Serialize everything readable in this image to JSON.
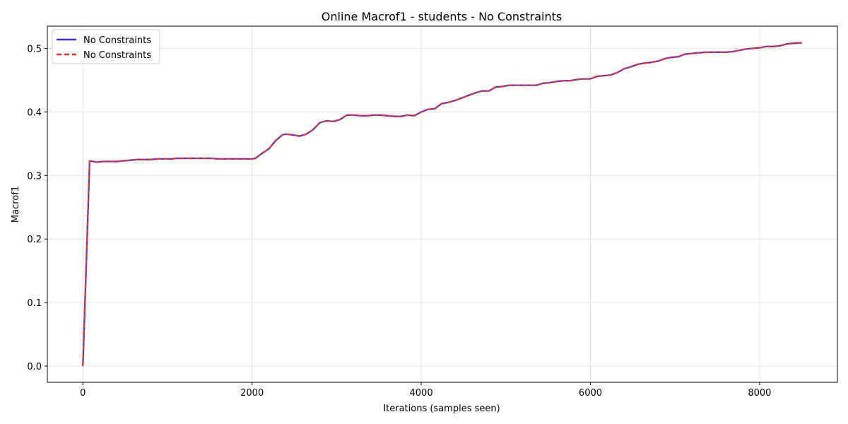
{
  "chart_data": {
    "type": "line",
    "title": "Online Macrof1 - students - No Constraints",
    "xlabel": "Iterations (samples seen)",
    "ylabel": "Macrof1",
    "xlim": [
      -420,
      8920
    ],
    "ylim": [
      -0.0255,
      0.535
    ],
    "xticks": [
      0,
      2000,
      4000,
      6000,
      8000
    ],
    "xtick_labels": [
      "0",
      "2000",
      "4000",
      "6000",
      "8000"
    ],
    "yticks": [
      0.0,
      0.1,
      0.2,
      0.3,
      0.4,
      0.5
    ],
    "ytick_labels": [
      "0.0",
      "0.1",
      "0.2",
      "0.3",
      "0.4",
      "0.5"
    ],
    "grid": true,
    "legend_position": "upper-left",
    "x": [
      0,
      80,
      160,
      240,
      320,
      400,
      480,
      560,
      640,
      720,
      800,
      880,
      960,
      1040,
      1120,
      1200,
      1280,
      1360,
      1440,
      1520,
      1600,
      1680,
      1760,
      1840,
      1920,
      2000,
      2040,
      2120,
      2200,
      2280,
      2360,
      2400,
      2480,
      2560,
      2640,
      2720,
      2800,
      2880,
      2960,
      3040,
      3120,
      3200,
      3280,
      3360,
      3440,
      3520,
      3600,
      3680,
      3760,
      3840,
      3920,
      4000,
      4080,
      4160,
      4240,
      4320,
      4400,
      4480,
      4560,
      4640,
      4720,
      4800,
      4880,
      4960,
      5040,
      5120,
      5200,
      5280,
      5360,
      5440,
      5520,
      5600,
      5680,
      5760,
      5840,
      5920,
      6000,
      6080,
      6160,
      6240,
      6320,
      6400,
      6480,
      6560,
      6640,
      6720,
      6800,
      6880,
      6960,
      7040,
      7120,
      7200,
      7280,
      7360,
      7440,
      7520,
      7600,
      7680,
      7760,
      7840,
      7920,
      8000,
      8080,
      8160,
      8240,
      8320,
      8400,
      8500
    ],
    "series": [
      {
        "name": "No Constraints",
        "color": "#3333dd",
        "style": "solid",
        "values": [
          0.0,
          0.323,
          0.321,
          0.322,
          0.322,
          0.322,
          0.323,
          0.324,
          0.325,
          0.325,
          0.325,
          0.326,
          0.326,
          0.326,
          0.327,
          0.327,
          0.327,
          0.327,
          0.327,
          0.327,
          0.326,
          0.326,
          0.326,
          0.326,
          0.326,
          0.326,
          0.327,
          0.335,
          0.342,
          0.355,
          0.364,
          0.365,
          0.364,
          0.362,
          0.365,
          0.372,
          0.383,
          0.386,
          0.385,
          0.388,
          0.395,
          0.395,
          0.394,
          0.394,
          0.395,
          0.395,
          0.394,
          0.393,
          0.393,
          0.395,
          0.394,
          0.4,
          0.404,
          0.405,
          0.413,
          0.415,
          0.418,
          0.422,
          0.426,
          0.43,
          0.433,
          0.433,
          0.439,
          0.44,
          0.442,
          0.442,
          0.442,
          0.442,
          0.442,
          0.445,
          0.446,
          0.448,
          0.449,
          0.449,
          0.451,
          0.452,
          0.452,
          0.456,
          0.457,
          0.458,
          0.462,
          0.468,
          0.471,
          0.475,
          0.477,
          0.478,
          0.48,
          0.484,
          0.486,
          0.487,
          0.491,
          0.492,
          0.493,
          0.494,
          0.494,
          0.494,
          0.494,
          0.495,
          0.497,
          0.499,
          0.5,
          0.501,
          0.503,
          0.503,
          0.504,
          0.507,
          0.508,
          0.509
        ]
      },
      {
        "name": "No Constraints",
        "color": "#ee3333",
        "style": "dashed",
        "values": [
          0.0,
          0.323,
          0.321,
          0.322,
          0.322,
          0.322,
          0.323,
          0.324,
          0.325,
          0.325,
          0.325,
          0.326,
          0.326,
          0.326,
          0.327,
          0.327,
          0.327,
          0.327,
          0.327,
          0.327,
          0.326,
          0.326,
          0.326,
          0.326,
          0.326,
          0.326,
          0.327,
          0.335,
          0.342,
          0.355,
          0.364,
          0.365,
          0.364,
          0.362,
          0.365,
          0.372,
          0.383,
          0.386,
          0.385,
          0.388,
          0.395,
          0.395,
          0.394,
          0.394,
          0.395,
          0.395,
          0.394,
          0.393,
          0.393,
          0.395,
          0.394,
          0.4,
          0.404,
          0.405,
          0.413,
          0.415,
          0.418,
          0.422,
          0.426,
          0.43,
          0.433,
          0.433,
          0.439,
          0.44,
          0.442,
          0.442,
          0.442,
          0.442,
          0.442,
          0.445,
          0.446,
          0.448,
          0.449,
          0.449,
          0.451,
          0.452,
          0.452,
          0.456,
          0.457,
          0.458,
          0.462,
          0.468,
          0.471,
          0.475,
          0.477,
          0.478,
          0.48,
          0.484,
          0.486,
          0.487,
          0.491,
          0.492,
          0.493,
          0.494,
          0.494,
          0.494,
          0.494,
          0.495,
          0.497,
          0.499,
          0.5,
          0.501,
          0.503,
          0.503,
          0.504,
          0.507,
          0.508,
          0.509
        ]
      }
    ]
  }
}
